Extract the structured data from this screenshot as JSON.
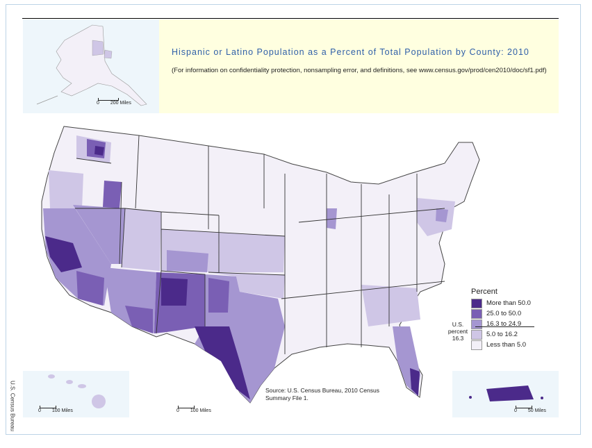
{
  "title": "Hispanic or Latino Population as a Percent of Total Population by County: 2010",
  "subtitle": "(For information on confidentiality protection, nonsampling error, and definitions, see www.census.gov/prod/cen2010/doc/sf1.pdf)",
  "source": "Source:  U.S. Census Bureau, 2010 Census Summary File 1.",
  "credit": "U.S. Census Bureau",
  "scales": {
    "alaska": {
      "zero": "0",
      "label": "200 Miles"
    },
    "hawaii": {
      "zero": "0",
      "label": "100 Miles"
    },
    "conus": {
      "zero": "0",
      "label": "100 Miles"
    },
    "puerto_rico": {
      "zero": "0",
      "label": "50 Miles"
    }
  },
  "legend": {
    "title": "Percent",
    "items": [
      {
        "label": "More than 50.0",
        "color": "#4b2a8a"
      },
      {
        "label": "25.0 to 50.0",
        "color": "#7a5fb4"
      },
      {
        "label": "16.3 to 24.9",
        "color": "#a596d1"
      },
      {
        "label": "5.0 to 16.2",
        "color": "#cfc6e6"
      },
      {
        "label": "Less than 5.0",
        "color": "#f3f0f8"
      }
    ],
    "us_percent_label": "U.S. percent",
    "us_percent_value": "16.3"
  }
}
